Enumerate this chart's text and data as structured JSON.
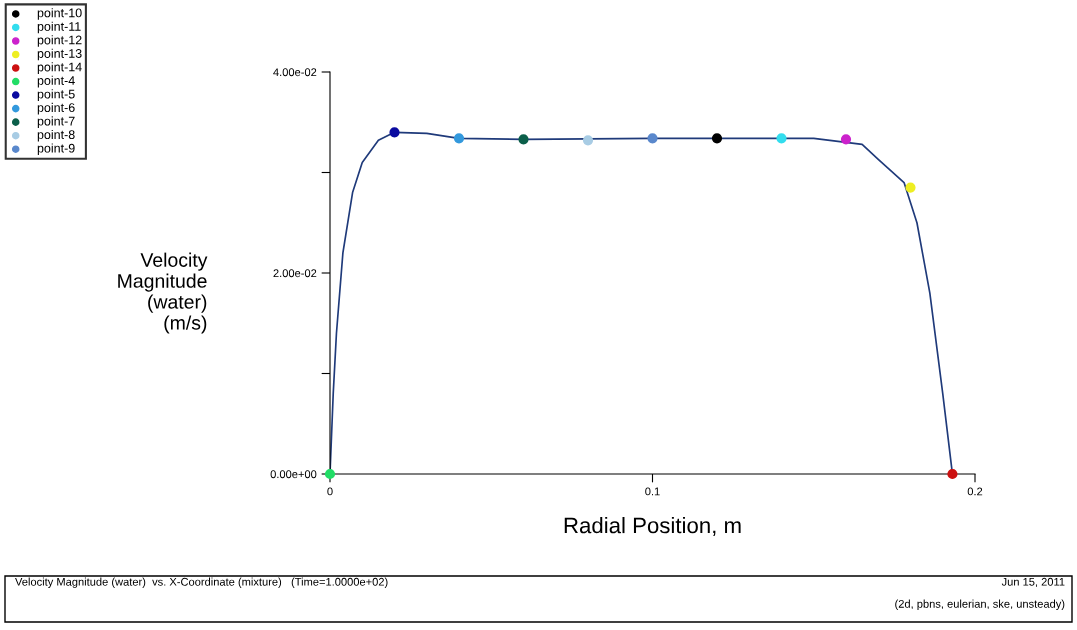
{
  "chart_data": {
    "type": "line",
    "xlabel": "Radial Position, m",
    "ylabel": "Velocity\nMagnitude\n(water)\n(m/s)",
    "xlim": [
      0,
      0.2
    ],
    "xticks": [
      0,
      0.1,
      0.2
    ],
    "ylim": [
      0,
      0.04
    ],
    "yticks": [
      {
        "value": 0,
        "label": "0.00e+00"
      },
      {
        "value": 0.01,
        "label": null
      },
      {
        "value": 0.02,
        "label": "2.00e-02"
      },
      {
        "value": 0.03,
        "label": null
      },
      {
        "value": 0.04,
        "label": "4.00e-02"
      }
    ],
    "grid": false,
    "legend": "top left",
    "marker": "circle",
    "series": [
      {
        "marker": "none",
        "color": "#1f3a7a",
        "x": [
          0,
          0.001,
          0.002,
          0.004,
          0.007,
          0.01,
          0.015,
          0.02,
          0.03,
          0.04,
          0.06,
          0.1,
          0.12,
          0.15,
          0.165,
          0.17,
          0.178,
          0.182,
          0.186,
          0.19,
          0.193
        ],
        "values": [
          0,
          0.008,
          0.014,
          0.022,
          0.028,
          0.031,
          0.0332,
          0.034,
          0.0339,
          0.0334,
          0.0333,
          0.0334,
          0.0334,
          0.0334,
          0.0328,
          0.0313,
          0.029,
          0.025,
          0.018,
          0.008,
          0
        ]
      },
      {
        "type": "scatter",
        "name": "point-10",
        "color": "#000000",
        "x": [
          0.12
        ],
        "values": [
          0.0334
        ]
      },
      {
        "type": "scatter",
        "name": "point-11",
        "color": "#33ddee",
        "x": [
          0.14
        ],
        "values": [
          0.0334
        ]
      },
      {
        "type": "scatter",
        "name": "point-12",
        "color": "#cc22cc",
        "x": [
          0.16
        ],
        "values": [
          0.0333
        ]
      },
      {
        "type": "scatter",
        "name": "point-13",
        "color": "#eeee22",
        "x": [
          0.18
        ],
        "values": [
          0.0285
        ]
      },
      {
        "type": "scatter",
        "name": "point-14",
        "color": "#cc1111",
        "x": [
          0.193
        ],
        "values": [
          0
        ]
      },
      {
        "type": "scatter",
        "name": "point-4",
        "color": "#22dd66",
        "x": [
          0
        ],
        "values": [
          0
        ]
      },
      {
        "type": "scatter",
        "name": "point-5",
        "color": "#0a0aa0",
        "x": [
          0.02
        ],
        "values": [
          0.034
        ]
      },
      {
        "type": "scatter",
        "name": "point-6",
        "color": "#3399dd",
        "x": [
          0.04
        ],
        "values": [
          0.0334
        ]
      },
      {
        "type": "scatter",
        "name": "point-7",
        "color": "#0b5f4a",
        "x": [
          0.06
        ],
        "values": [
          0.0333
        ]
      },
      {
        "type": "scatter",
        "name": "point-8",
        "color": "#a8cce4",
        "x": [
          0.08
        ],
        "values": [
          0.0332
        ]
      },
      {
        "type": "scatter",
        "name": "point-9",
        "color": "#5a88cc",
        "x": [
          0.1
        ],
        "values": [
          0.0334
        ]
      }
    ],
    "annotations": [
      "Velocity Magnitude (water)  vs. X-Coordinate (mixture)   (Time=1.0000e+02)",
      "Jun 15, 2011",
      "(2d, pbns, eulerian, ske, unsteady)"
    ]
  }
}
